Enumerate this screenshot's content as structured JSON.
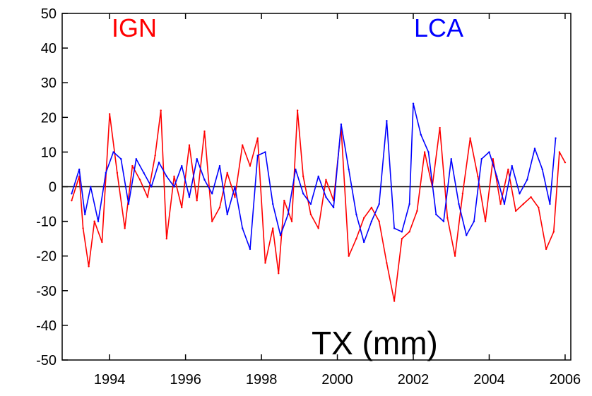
{
  "chart_data": {
    "type": "line",
    "title": "",
    "xlabel": "",
    "ylabel": "",
    "annotation": "TX (mm)",
    "xlim": [
      1992.75,
      2006.15
    ],
    "ylim": [
      -50,
      50
    ],
    "x_ticks": [
      1994,
      1996,
      1998,
      2000,
      2002,
      2004,
      2006
    ],
    "y_ticks": [
      -50,
      -40,
      -30,
      -20,
      -10,
      0,
      10,
      20,
      30,
      40,
      50
    ],
    "zero_line": true,
    "grid": false,
    "series": [
      {
        "name": "IGN",
        "color": "#ff0000",
        "x": [
          1993.0,
          1993.2,
          1993.3,
          1993.45,
          1993.6,
          1993.8,
          1994.0,
          1994.2,
          1994.4,
          1994.6,
          1994.8,
          1995.0,
          1995.2,
          1995.35,
          1995.5,
          1995.7,
          1995.9,
          1996.1,
          1996.3,
          1996.5,
          1996.7,
          1996.9,
          1997.1,
          1997.3,
          1997.5,
          1997.7,
          1997.9,
          1998.1,
          1998.3,
          1998.45,
          1998.6,
          1998.8,
          1998.95,
          1999.1,
          1999.3,
          1999.5,
          1999.7,
          1999.9,
          2000.1,
          2000.3,
          2000.5,
          2000.7,
          2000.9,
          2001.1,
          2001.3,
          2001.5,
          2001.7,
          2001.9,
          2002.1,
          2002.3,
          2002.5,
          2002.7,
          2002.9,
          2003.1,
          2003.3,
          2003.5,
          2003.7,
          2003.9,
          2004.1,
          2004.3,
          2004.5,
          2004.7,
          2004.9,
          2005.1,
          2005.3,
          2005.5,
          2005.7,
          2005.85,
          2006.0
        ],
        "values": [
          -4,
          3,
          -12,
          -23,
          -10,
          -16,
          21,
          4,
          -12,
          6,
          2,
          -3,
          9,
          22,
          -15,
          3,
          -6,
          12,
          -4,
          16,
          -10,
          -6,
          4,
          -3,
          12,
          6,
          14,
          -22,
          -12,
          -25,
          -4,
          -10,
          22,
          3,
          -8,
          -12,
          2,
          -4,
          17,
          -20,
          -15,
          -9,
          -6,
          -10,
          -22,
          -33,
          -15,
          -13,
          -7,
          10,
          0,
          17,
          -9,
          -20,
          -2,
          14,
          3,
          -10,
          8,
          -5,
          5,
          -7,
          -5,
          -3,
          -6,
          -18,
          -13,
          10,
          7
        ]
      },
      {
        "name": "LCA",
        "color": "#0000ff",
        "x": [
          1993.0,
          1993.2,
          1993.35,
          1993.5,
          1993.7,
          1993.9,
          1994.1,
          1994.3,
          1994.5,
          1994.7,
          1994.9,
          1995.1,
          1995.3,
          1995.5,
          1995.7,
          1995.9,
          1996.1,
          1996.3,
          1996.5,
          1996.7,
          1996.9,
          1997.1,
          1997.3,
          1997.5,
          1997.7,
          1997.9,
          1998.1,
          1998.3,
          1998.5,
          1998.7,
          1998.9,
          1999.1,
          1999.3,
          1999.5,
          1999.7,
          1999.9,
          2000.1,
          2000.3,
          2000.5,
          2000.7,
          2000.9,
          2001.1,
          2001.3,
          2001.5,
          2001.7,
          2001.9,
          2002.0,
          2002.2,
          2002.4,
          2002.6,
          2002.8,
          2003.0,
          2003.2,
          2003.4,
          2003.6,
          2003.8,
          2004.0,
          2004.2,
          2004.4,
          2004.6,
          2004.8,
          2005.0,
          2005.2,
          2005.4,
          2005.6,
          2005.75
        ],
        "values": [
          -2,
          5,
          -8,
          0,
          -10,
          4,
          10,
          8,
          -5,
          8,
          4,
          0,
          7,
          3,
          0,
          6,
          -3,
          8,
          2,
          -2,
          6,
          -8,
          0,
          -12,
          -18,
          9,
          10,
          -5,
          -14,
          -8,
          5,
          -2,
          -5,
          3,
          -3,
          -6,
          18,
          5,
          -8,
          -16,
          -10,
          -5,
          19,
          -12,
          -13,
          -5,
          24,
          15,
          10,
          -8,
          -10,
          8,
          -5,
          -14,
          -10,
          8,
          10,
          3,
          -5,
          6,
          -2,
          2,
          11,
          5,
          -5,
          14
        ]
      }
    ]
  }
}
